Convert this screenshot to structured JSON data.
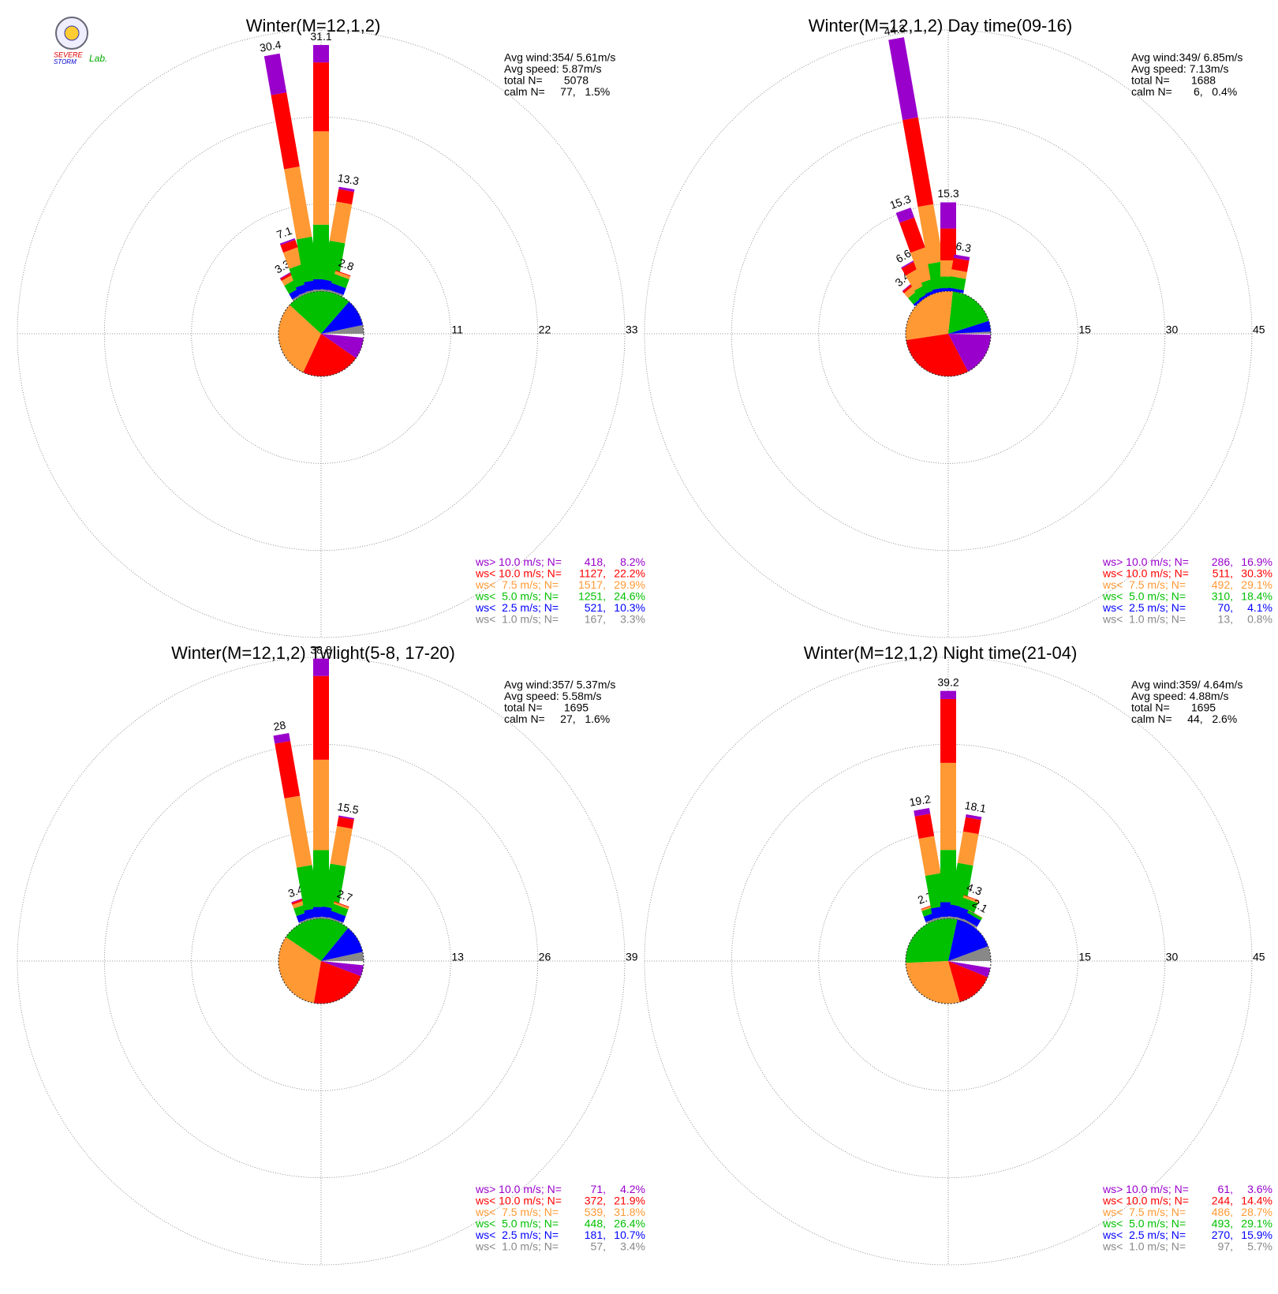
{
  "logo_text": [
    "SEVERE",
    "STORM",
    "Lab."
  ],
  "chart_data": [
    {
      "type": "windrose",
      "title": "Winter(M=12,1,2)",
      "info": [
        "Avg wind:354/ 5.61m/s",
        "Avg speed: 5.87m/s",
        "total N=       5078",
        "calm N=     77,   1.5%"
      ],
      "rlim": [
        0,
        33
      ],
      "rticks": [
        11,
        22,
        33
      ],
      "directions": [
        330,
        340,
        350,
        0,
        10,
        20
      ],
      "totals": [
        3.3,
        7.1,
        30.4,
        31.1,
        13.3,
        2.8
      ],
      "series": [
        {
          "name": "ws<  1.0 m/s; N=",
          "color": "#888888",
          "count": 167,
          "count_label": "167,",
          "percent": 3.3,
          "percent_label": "3.3%",
          "values": [
            0.2,
            0.2,
            0.2,
            0.2,
            0.2,
            0.2
          ]
        },
        {
          "name": "ws<  2.5 m/s; N=",
          "color": "#0000ff",
          "count": 521,
          "count_label": "521,",
          "percent": 10.3,
          "percent_label": "10.3%",
          "values": [
            0.8,
            1.0,
            1.2,
            1.3,
            1.2,
            0.9
          ]
        },
        {
          "name": "ws<  5.0 m/s; N=",
          "color": "#00c000",
          "count": 1251,
          "count_label": "1251,",
          "percent": 24.6,
          "percent_label": "24.6%",
          "values": [
            1.2,
            2.5,
            5.5,
            6.9,
            5.0,
            1.2
          ]
        },
        {
          "name": "ws<  7.5 m/s; N=",
          "color": "#ff9933",
          "count": 1517,
          "count_label": "1517,",
          "percent": 29.9,
          "percent_label": "29.9%",
          "values": [
            0.7,
            2.2,
            9.0,
            11.8,
            5.0,
            0.4
          ]
        },
        {
          "name": "ws< 10.0 m/s; N=",
          "color": "#ff0000",
          "count": 1127,
          "count_label": "1127,",
          "percent": 22.2,
          "percent_label": "22.2%",
          "values": [
            0.3,
            1.0,
            9.5,
            8.7,
            1.6,
            0.1
          ]
        },
        {
          "name": "ws> 10.0 m/s; N=",
          "color": "#9900cc",
          "count": 418,
          "count_label": "418,",
          "percent": 8.2,
          "percent_label": "8.2%",
          "values": [
            0.1,
            0.2,
            5.0,
            2.2,
            0.3,
            0.0
          ]
        }
      ]
    },
    {
      "type": "windrose",
      "title": "Winter(M=12,1,2) Day time(09-16)",
      "info": [
        "Avg wind:349/ 6.85m/s",
        "Avg speed: 7.13m/s",
        "total N=       1688",
        "calm N=       6,   0.4%"
      ],
      "rlim": [
        0,
        45
      ],
      "rticks": [
        15,
        30,
        45
      ],
      "directions": [
        320,
        330,
        340,
        350,
        0,
        10
      ],
      "totals": [
        3.4,
        6.6,
        15.3,
        44.3,
        15.3,
        6.3
      ],
      "series": [
        {
          "name": "ws<  1.0 m/s; N=",
          "color": "#888888",
          "count": 13,
          "count_label": "13,",
          "percent": 0.8,
          "percent_label": "0.8%",
          "values": [
            0.0,
            0.0,
            0.0,
            0.0,
            0.0,
            0.0
          ]
        },
        {
          "name": "ws<  2.5 m/s; N=",
          "color": "#0000ff",
          "count": 70,
          "count_label": "70,",
          "percent": 4.1,
          "percent_label": "4.1%",
          "values": [
            0.4,
            0.4,
            0.5,
            0.6,
            0.5,
            0.5
          ]
        },
        {
          "name": "ws<  5.0 m/s; N=",
          "color": "#00c000",
          "count": 310,
          "count_label": "310,",
          "percent": 18.4,
          "percent_label": "18.4%",
          "values": [
            1.4,
            1.6,
            2.0,
            4.5,
            2.0,
            2.0
          ]
        },
        {
          "name": "ws<  7.5 m/s; N=",
          "color": "#ff9933",
          "count": 492,
          "count_label": "492,",
          "percent": 29.1,
          "percent_label": "29.1%",
          "values": [
            1.1,
            3.0,
            5.5,
            10.0,
            2.8,
            1.2
          ]
        },
        {
          "name": "ws< 10.0 m/s; N=",
          "color": "#ff0000",
          "count": 511,
          "count_label": "511,",
          "percent": 30.3,
          "percent_label": "30.3%",
          "values": [
            0.4,
            1.4,
            5.5,
            15.2,
            5.5,
            2.0
          ]
        },
        {
          "name": "ws> 10.0 m/s; N=",
          "color": "#9900cc",
          "count": 286,
          "count_label": "286,",
          "percent": 16.9,
          "percent_label": "16.9%",
          "values": [
            0.1,
            0.2,
            1.8,
            14.0,
            4.5,
            0.6
          ]
        }
      ]
    },
    {
      "type": "windrose",
      "title": "Winter(M=12,1,2) Twlight(5-8, 17-20)",
      "info": [
        "Avg wind:357/ 5.37m/s",
        "Avg speed: 5.58m/s",
        "total N=       1695",
        "calm N=     27,   1.6%"
      ],
      "rlim": [
        0,
        39
      ],
      "rticks": [
        13,
        26,
        39
      ],
      "directions": [
        340,
        350,
        0,
        10,
        20
      ],
      "totals": [
        3.4,
        28.0,
        38.8,
        15.5,
        2.7
      ],
      "series": [
        {
          "name": "ws<  1.0 m/s; N=",
          "color": "#888888",
          "count": 57,
          "count_label": "57,",
          "percent": 3.4,
          "percent_label": "3.4%",
          "values": [
            0.2,
            0.2,
            0.2,
            0.2,
            0.2
          ]
        },
        {
          "name": "ws<  2.5 m/s; N=",
          "color": "#0000ff",
          "count": 181,
          "count_label": "181,",
          "percent": 10.7,
          "percent_label": "10.7%",
          "values": [
            1.0,
            1.3,
            1.5,
            1.5,
            1.0
          ]
        },
        {
          "name": "ws<  5.0 m/s; N=",
          "color": "#00c000",
          "count": 448,
          "count_label": "448,",
          "percent": 26.4,
          "percent_label": "26.4%",
          "values": [
            1.2,
            6.5,
            8.5,
            6.5,
            1.1
          ]
        },
        {
          "name": "ws<  7.5 m/s; N=",
          "color": "#ff9933",
          "count": 539,
          "count_label": "539,",
          "percent": 31.8,
          "percent_label": "31.8%",
          "values": [
            0.6,
            10.5,
            13.5,
            5.7,
            0.3
          ]
        },
        {
          "name": "ws< 10.0 m/s; N=",
          "color": "#ff0000",
          "count": 372,
          "count_label": "372,",
          "percent": 21.9,
          "percent_label": "21.9%",
          "values": [
            0.3,
            8.3,
            12.5,
            1.4,
            0.1
          ]
        },
        {
          "name": "ws> 10.0 m/s; N=",
          "color": "#9900cc",
          "count": 71,
          "count_label": "71,",
          "percent": 4.2,
          "percent_label": "4.2%",
          "values": [
            0.1,
            1.2,
            2.6,
            0.2,
            0.0
          ]
        }
      ]
    },
    {
      "type": "windrose",
      "title": "Winter(M=12,1,2) Night time(21-04)",
      "info": [
        "Avg wind:359/ 4.64m/s",
        "Avg speed: 4.88m/s",
        "total N=       1695",
        "calm N=     44,   2.6%"
      ],
      "rlim": [
        0,
        45
      ],
      "rticks": [
        15,
        30,
        45
      ],
      "directions": [
        340,
        350,
        0,
        10,
        20,
        30
      ],
      "totals": [
        2.7,
        19.2,
        39.2,
        18.1,
        4.3,
        2.1
      ],
      "series": [
        {
          "name": "ws<  1.0 m/s; N=",
          "color": "#888888",
          "count": 97,
          "count_label": "97,",
          "percent": 5.7,
          "percent_label": "5.7%",
          "values": [
            0.3,
            0.3,
            0.3,
            0.3,
            0.3,
            0.3
          ]
        },
        {
          "name": "ws<  2.5 m/s; N=",
          "color": "#0000ff",
          "count": 270,
          "count_label": "270,",
          "percent": 15.9,
          "percent_label": "15.9%",
          "values": [
            1.0,
            1.8,
            2.5,
            2.0,
            1.8,
            1.2
          ]
        },
        {
          "name": "ws<  5.0 m/s; N=",
          "color": "#00c000",
          "count": 493,
          "count_label": "493,",
          "percent": 29.1,
          "percent_label": "29.1%",
          "values": [
            1.0,
            5.7,
            9.0,
            7.3,
            1.7,
            0.5
          ]
        },
        {
          "name": "ws<  7.5 m/s; N=",
          "color": "#ff9933",
          "count": 486,
          "count_label": "486,",
          "percent": 28.7,
          "percent_label": "28.7%",
          "values": [
            0.3,
            6.5,
            15.0,
            5.5,
            0.4,
            0.1
          ]
        },
        {
          "name": "ws< 10.0 m/s; N=",
          "color": "#ff0000",
          "count": 244,
          "count_label": "244,",
          "percent": 14.4,
          "percent_label": "14.4%",
          "values": [
            0.1,
            3.9,
            11.0,
            2.5,
            0.1,
            0.0
          ]
        },
        {
          "name": "ws> 10.0 m/s; N=",
          "color": "#9900cc",
          "count": 61,
          "count_label": "61,",
          "percent": 3.6,
          "percent_label": "3.6%",
          "values": [
            0.0,
            1.0,
            1.4,
            0.5,
            0.0,
            0.0
          ]
        }
      ]
    }
  ]
}
